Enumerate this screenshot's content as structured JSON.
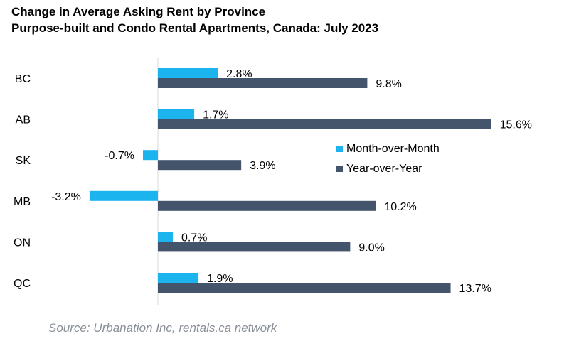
{
  "chart_data": {
    "type": "bar",
    "orientation": "horizontal",
    "title": "Change in Average Asking Rent by Province",
    "subtitle": "Purpose-built and Condo Rental Apartments, Canada: July 2023",
    "categories": [
      "BC",
      "AB",
      "SK",
      "MB",
      "ON",
      "QC"
    ],
    "series": [
      {
        "name": "Month-over-Month",
        "color": "#1cb4ee",
        "values": [
          2.8,
          1.7,
          -0.7,
          -3.2,
          0.7,
          1.9
        ],
        "labels": [
          "2.8%",
          "1.7%",
          "-0.7%",
          "-3.2%",
          "0.7%",
          "1.9%"
        ]
      },
      {
        "name": "Year-over-Year",
        "color": "#44546a",
        "values": [
          9.8,
          15.6,
          3.9,
          10.2,
          9.0,
          13.7
        ],
        "labels": [
          "9.8%",
          "15.6%",
          "3.9%",
          "10.2%",
          "9.0%",
          "13.7%"
        ]
      }
    ],
    "legend_position": "right",
    "grid": false,
    "source": "Source: Urbanation Inc, rentals.ca network"
  }
}
